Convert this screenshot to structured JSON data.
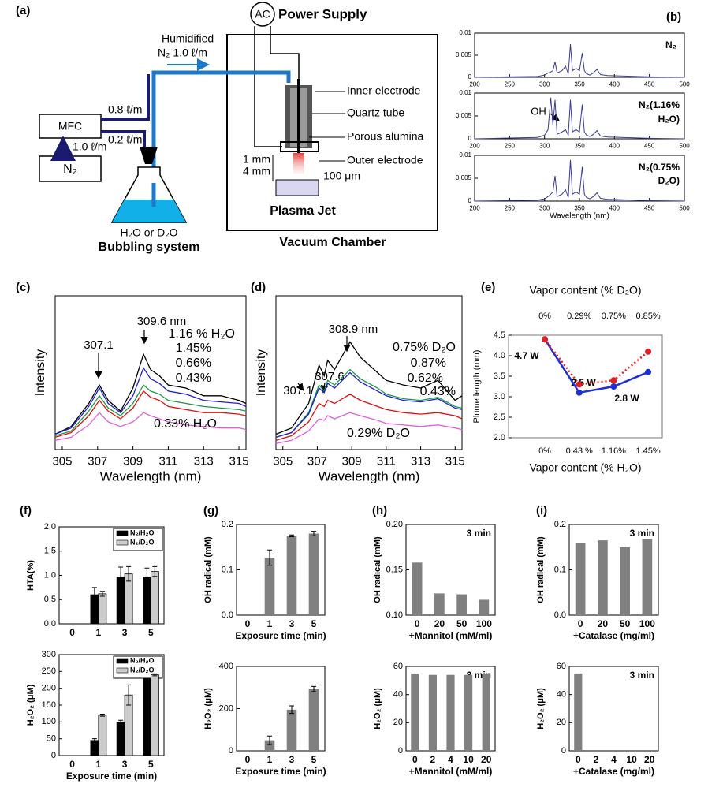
{
  "diagram": {
    "label": "(a)",
    "power": "AC",
    "power_label": "Power Supply",
    "humidified": "Humidified",
    "main_flow": "N₂ 1.0 ℓ/m",
    "inner": "Inner electrode",
    "quartz": "Quartz tube",
    "porous": "Porous alumina",
    "outer": "Outer electrode",
    "gap1": "1 mm",
    "gap2": "4 mm",
    "hole": "100 μm",
    "jet": "Plasma Jet",
    "chamber": "Vacuum Chamber",
    "mfc": "MFC",
    "flow1": "0.8 ℓ/m",
    "flow2": "0.2 ℓ/m",
    "flow3": "1.0 ℓ/m",
    "source": "N₂",
    "liquid": "H₂O or D₂O",
    "bubbler": "Bubbling system"
  },
  "chart_data": [
    {
      "type": "line",
      "panel": "(b)",
      "annotations": [
        "N₂"
      ],
      "x": [
        200,
        290,
        300,
        305,
        309,
        312,
        315,
        318,
        325,
        330,
        334,
        337,
        340,
        345,
        350,
        354,
        357,
        360,
        365,
        370,
        375,
        380,
        390,
        410,
        450,
        500
      ],
      "series": [
        {
          "color": "#3a3a9a",
          "values": [
            0,
            0.0002,
            0.0005,
            0.001,
            0.0012,
            0.0015,
            0.0035,
            0.001,
            0.0015,
            0.0025,
            0.0008,
            0.0075,
            0.0015,
            0.002,
            0.0015,
            0.0055,
            0.0015,
            0.0008,
            0.0005,
            0.001,
            0.0018,
            0.0006,
            0.0004,
            0.0003,
            0.0001,
            0
          ]
        }
      ],
      "xlim": [
        200,
        500
      ],
      "xticks": [
        200,
        250,
        300,
        350,
        400,
        450,
        500
      ],
      "ylim": [
        0,
        0.01
      ],
      "yticks": [
        0,
        0.005,
        0.01
      ]
    },
    {
      "type": "line",
      "annotations": [
        "OH",
        "N₂(1.16%",
        "H₂O)"
      ],
      "x": [
        200,
        290,
        300,
        305,
        309,
        312,
        315,
        318,
        325,
        330,
        334,
        337,
        340,
        345,
        350,
        354,
        357,
        360,
        365,
        370,
        375,
        380,
        390,
        410,
        450,
        500
      ],
      "series": [
        {
          "color": "#3a3a9a",
          "values": [
            0,
            0.0003,
            0.0008,
            0.002,
            0.009,
            0.003,
            0.0085,
            0.001,
            0.0015,
            0.002,
            0.0008,
            0.0085,
            0.0015,
            0.002,
            0.0015,
            0.0075,
            0.0015,
            0.0008,
            0.0005,
            0.001,
            0.0018,
            0.0006,
            0.0004,
            0.0003,
            0.0001,
            0
          ]
        }
      ],
      "xlim": [
        200,
        500
      ],
      "xticks": [
        200,
        250,
        300,
        350,
        400,
        450,
        500
      ],
      "ylim": [
        0,
        0.01
      ],
      "yticks": [
        0,
        0.005,
        0.01
      ]
    },
    {
      "type": "line",
      "annotations": [
        "N₂(0.75%",
        "D₂O)"
      ],
      "xlabel": "Wavelength (nm)",
      "x": [
        200,
        290,
        300,
        305,
        309,
        312,
        315,
        318,
        325,
        330,
        334,
        337,
        340,
        345,
        350,
        354,
        357,
        360,
        365,
        370,
        375,
        380,
        390,
        410,
        450,
        500
      ],
      "series": [
        {
          "color": "#3a3a9a",
          "values": [
            0,
            0.0002,
            0.0005,
            0.001,
            0.0015,
            0.002,
            0.0055,
            0.001,
            0.0015,
            0.0025,
            0.0008,
            0.009,
            0.0015,
            0.002,
            0.0015,
            0.0075,
            0.0015,
            0.0008,
            0.0005,
            0.001,
            0.0018,
            0.0006,
            0.0004,
            0.0003,
            0.0001,
            0
          ]
        }
      ],
      "xlim": [
        200,
        500
      ],
      "xticks": [
        200,
        250,
        300,
        350,
        400,
        450,
        500
      ],
      "ylim": [
        0,
        0.01
      ],
      "yticks": [
        0,
        0.005,
        0.01
      ]
    },
    {
      "type": "line",
      "panel": "(c)",
      "ylabel": "Intensity",
      "xlabel": "Wavelength (nm)",
      "annotations": [
        "307.1",
        "309.6 nm"
      ],
      "x": [
        304.6,
        305.5,
        306.5,
        307.1,
        307.6,
        308.3,
        309,
        309.6,
        310,
        310.5,
        311,
        312,
        313,
        314,
        315,
        315.4
      ],
      "xlim": [
        304.6,
        315.4
      ],
      "xticks": [
        305,
        307,
        309,
        311,
        313,
        315
      ],
      "ylim": [
        0,
        100
      ],
      "series": [
        {
          "name": "1.16 % H₂O",
          "color": "#000000",
          "values": [
            10,
            15,
            30,
            42,
            32,
            25,
            40,
            62,
            52,
            48,
            42,
            40,
            35,
            35,
            32,
            30
          ]
        },
        {
          "name": "1.45%",
          "color": "#1f1fc8",
          "values": [
            10,
            14,
            28,
            40,
            30,
            24,
            35,
            53,
            46,
            43,
            38,
            36,
            32,
            31,
            30,
            28
          ]
        },
        {
          "name": "0.66%",
          "color": "#1a9a4a",
          "values": [
            9,
            12,
            25,
            35,
            27,
            22,
            30,
            42,
            38,
            36,
            32,
            30,
            28,
            27,
            26,
            25
          ]
        },
        {
          "name": "0.43%",
          "color": "#e01010",
          "values": [
            8,
            11,
            22,
            32,
            25,
            20,
            27,
            38,
            34,
            32,
            28,
            26,
            24,
            24,
            23,
            22
          ]
        },
        {
          "name": "0.33% H₂O",
          "color": "#e060e0",
          "values": [
            6,
            8,
            16,
            24,
            18,
            15,
            18,
            24,
            22,
            20,
            18,
            16,
            15,
            14,
            14,
            13
          ]
        }
      ]
    },
    {
      "type": "line",
      "panel": "(d)",
      "ylabel": "Intensity",
      "xlabel": "Wavelength (nm)",
      "annotations": [
        "307.1",
        "307.6",
        "308.9 nm"
      ],
      "x": [
        304.6,
        305.5,
        306.5,
        307.1,
        307.4,
        307.6,
        308,
        308.9,
        309.5,
        310.5,
        311,
        312,
        313,
        314,
        315,
        315.4
      ],
      "xlim": [
        304.6,
        315.4
      ],
      "xticks": [
        305,
        307,
        309,
        311,
        313,
        315
      ],
      "ylim": [
        0,
        100
      ],
      "series": [
        {
          "name": "0.75% D₂O",
          "color": "#000000",
          "values": [
            10,
            14,
            30,
            55,
            48,
            58,
            52,
            70,
            60,
            50,
            45,
            42,
            40,
            45,
            32,
            35
          ]
        },
        {
          "name": "0.87%",
          "color": "#1a9a4a",
          "values": [
            8,
            11,
            24,
            42,
            38,
            45,
            42,
            52,
            46,
            40,
            36,
            33,
            32,
            34,
            28,
            27
          ]
        },
        {
          "name": "0.62%",
          "color": "#1f1fc8",
          "values": [
            8,
            11,
            23,
            40,
            37,
            43,
            40,
            50,
            44,
            38,
            35,
            32,
            31,
            33,
            27,
            26
          ]
        },
        {
          "name": "0.43%",
          "color": "#e01010",
          "values": [
            6,
            9,
            18,
            30,
            28,
            32,
            30,
            36,
            32,
            28,
            26,
            24,
            23,
            24,
            22,
            20
          ]
        },
        {
          "name": "0.29% D₂O",
          "color": "#e060e0",
          "values": [
            4,
            6,
            12,
            20,
            19,
            22,
            20,
            24,
            22,
            19,
            17,
            16,
            15,
            16,
            14,
            13
          ]
        }
      ]
    },
    {
      "type": "line",
      "panel": "(e)",
      "categories": [
        "0%",
        "0.43 %",
        "1.16%",
        "1.45%"
      ],
      "top_categories": [
        "0%",
        "0.29%",
        "0.75%",
        "0.85%"
      ],
      "xlabel": "Vapor content (% H₂O)",
      "top_xlabel": "Vapor content (% D₂O)",
      "x_label_color": "#1f2fd6",
      "top_label_color": "#e02020",
      "ylabel": "Plume length (mm)",
      "ylim": [
        2,
        4.5
      ],
      "yticks": [
        {
          "value": 2,
          "label": "2.0"
        },
        2.5,
        {
          "value": 3,
          "label": "3.0"
        },
        3.5,
        {
          "value": 4,
          "label": "4.0"
        },
        4.5
      ],
      "markers": true,
      "annotations": [
        "4.7 W",
        "2.5 W",
        "2.8 W"
      ],
      "annotation_colors": [
        "#000000",
        "#e02020",
        "#000000"
      ],
      "series": [
        {
          "color": "#1f2fd6",
          "values": [
            4.4,
            3.1,
            3.25,
            3.6
          ]
        },
        {
          "color": "#e02020",
          "dash": true,
          "values": [
            4.4,
            3.3,
            3.4,
            4.1
          ]
        }
      ]
    },
    {
      "type": "bar",
      "panel": "(f)",
      "ylabel": "HTA(%)",
      "categories": [
        "0",
        "1",
        "3",
        "5"
      ],
      "ylim": [
        0,
        2
      ],
      "yticks": [
        {
          "value": 0,
          "label": "0.0"
        },
        0.5,
        {
          "value": 1,
          "label": "1.0"
        },
        1.5,
        {
          "value": 2,
          "label": "2.0"
        }
      ],
      "legend": true,
      "series": [
        {
          "name": "N₂/H₂O",
          "color": "#000000",
          "values": [
            0,
            0.6,
            0.97,
            0.97
          ],
          "errors": [
            0,
            0.15,
            0.2,
            0.18
          ]
        },
        {
          "name": "N₂/D₂O",
          "color": "#cccccc",
          "values": [
            0,
            0.62,
            1.03,
            1.08
          ],
          "errors": [
            0,
            0.05,
            0.15,
            0.1
          ]
        }
      ]
    },
    {
      "type": "bar",
      "ylabel": "H₂O₂ (μM)",
      "xlabel": "Exposure time (min)",
      "categories": [
        "0",
        "1",
        "3",
        "5"
      ],
      "ylim": [
        0,
        300
      ],
      "yticks": [
        0,
        50,
        100,
        150,
        200,
        250,
        300
      ],
      "legend": true,
      "series": [
        {
          "name": "N₂/H₂O",
          "color": "#000000",
          "values": [
            0,
            45,
            100,
            240
          ],
          "errors": [
            0,
            5,
            5,
            8
          ]
        },
        {
          "name": "N₂/D₂O",
          "color": "#cccccc",
          "values": [
            0,
            120,
            180,
            240
          ],
          "errors": [
            0,
            3,
            30,
            3
          ]
        }
      ]
    },
    {
      "type": "bar",
      "panel": "(g)",
      "ylabel": "OH radical (mM)",
      "xlabel": "Exposure time (min)",
      "categories": [
        "0",
        "1",
        "3",
        "5"
      ],
      "ylim": [
        0,
        0.2
      ],
      "yticks": [
        {
          "value": 0,
          "label": "0.0"
        },
        0.1,
        0.2
      ],
      "series": [
        {
          "color": "#808080",
          "values": [
            0,
            0.127,
            0.175,
            0.18
          ],
          "errors": [
            0,
            0.017,
            0.002,
            0.005
          ]
        }
      ]
    },
    {
      "type": "bar",
      "ylabel": "H₂O₂ (μM)",
      "xlabel": "Exposure time (min)",
      "categories": [
        "0",
        "1",
        "3",
        "5"
      ],
      "ylim": [
        0,
        400
      ],
      "yticks": [
        0,
        200,
        400
      ],
      "series": [
        {
          "color": "#808080",
          "values": [
            0,
            50,
            195,
            293
          ],
          "errors": [
            0,
            20,
            18,
            12
          ]
        }
      ]
    },
    {
      "type": "bar",
      "panel": "(h)",
      "ylabel": "OH radical (mM)",
      "xlabel": "+Mannitol (mM/ml)",
      "annotations": [
        "3 min"
      ],
      "categories": [
        "0",
        "20",
        "50",
        "100"
      ],
      "ylim": [
        0.1,
        0.2
      ],
      "yticks": [
        {
          "value": 0.1,
          "label": "0.10"
        },
        0.15,
        {
          "value": 0.2,
          "label": "0.20"
        }
      ],
      "series": [
        {
          "color": "#808080",
          "values": [
            0.158,
            0.124,
            0.123,
            0.117
          ]
        }
      ]
    },
    {
      "type": "bar",
      "ylabel": "H₂O₂ (μM)",
      "xlabel": "+Mannitol (mM/ml)",
      "annotations": [
        "3 min"
      ],
      "categories": [
        "0",
        "2",
        "4",
        "10",
        "20"
      ],
      "ylim": [
        0,
        60
      ],
      "yticks": [
        0,
        20,
        40,
        60
      ],
      "series": [
        {
          "color": "#808080",
          "values": [
            55,
            54,
            54,
            54,
            55
          ]
        }
      ]
    },
    {
      "type": "bar",
      "panel": "(i)",
      "ylabel": "OH radical (mM)",
      "xlabel": "+Catalase (mg/ml)",
      "annotations": [
        "3 min"
      ],
      "categories": [
        "0",
        "20",
        "50",
        "100"
      ],
      "ylim": [
        0,
        0.2
      ],
      "yticks": [
        {
          "value": 0,
          "label": "0.0"
        },
        0.1,
        0.2
      ],
      "series": [
        {
          "color": "#808080",
          "values": [
            0.16,
            0.165,
            0.15,
            0.168
          ]
        }
      ]
    },
    {
      "type": "bar",
      "ylabel": "H₂O₂ (μM)",
      "xlabel": "+Catalase (mg/ml)",
      "annotations": [
        "3 min"
      ],
      "categories": [
        "0",
        "2",
        "4",
        "10",
        "20"
      ],
      "ylim": [
        0,
        60
      ],
      "yticks": [
        0,
        20,
        40,
        60
      ],
      "series": [
        {
          "color": "#808080",
          "values": [
            55,
            0,
            0,
            0,
            0
          ]
        }
      ]
    }
  ]
}
